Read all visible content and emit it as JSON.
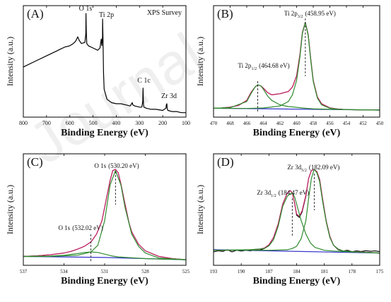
{
  "watermark": "Journal",
  "chart_data": [
    {
      "panel": "(A)",
      "type": "line",
      "title": "XPS Survey",
      "xlabel": "Binding Energy (eV)",
      "ylabel": "Intensity (a.u.)",
      "xlim": [
        800,
        100
      ],
      "x_reversed": true,
      "ylim": [
        0,
        100
      ],
      "yticks_shown": false,
      "xticks": [
        800,
        700,
        600,
        500,
        400,
        300,
        200,
        100
      ],
      "grid": false,
      "series": [
        {
          "color": "#000000",
          "x": [
            800,
            750,
            700,
            660,
            640,
            620,
            600,
            585,
            575,
            566,
            560,
            550,
            535,
            531,
            530.2,
            529,
            527,
            520,
            500,
            480,
            470,
            464.7,
            462,
            459,
            458.9,
            457,
            455,
            452,
            440,
            420,
            400,
            380,
            360,
            340,
            331,
            329,
            320,
            300,
            290,
            286,
            284.8,
            283,
            281,
            270,
            250,
            230,
            200,
            186,
            184.5,
            182.1,
            181,
            178,
            160,
            140,
            120,
            100
          ],
          "values": [
            45,
            50,
            55,
            59,
            61,
            63,
            64,
            66,
            68,
            72,
            69,
            66,
            67,
            75,
            93,
            78,
            66,
            64,
            62,
            60,
            62,
            70,
            64,
            72,
            88,
            70,
            40,
            25,
            16,
            13,
            12,
            12,
            11,
            10,
            13,
            11,
            10,
            9,
            9,
            14,
            26,
            12,
            9,
            8,
            7,
            7,
            6,
            8,
            11,
            12,
            8,
            6,
            5,
            5,
            4,
            4
          ]
        }
      ],
      "annotations": [
        {
          "text": "O 1s",
          "x": 530.2
        },
        {
          "text": "Ti 2p",
          "x": 459
        },
        {
          "text": "C 1c",
          "x": 284.8
        },
        {
          "text": "Zr 3d",
          "x": 182
        }
      ]
    },
    {
      "panel": "(B)",
      "type": "line",
      "title": "",
      "xlabel": "Binding Energy (eV)",
      "ylabel": "Intensity (a.u.)",
      "xlim": [
        470,
        450
      ],
      "x_reversed": true,
      "ylim": [
        0,
        100
      ],
      "yticks_shown": false,
      "xticks": [
        470,
        468,
        466,
        464,
        462,
        460,
        458,
        456,
        454,
        452,
        450
      ],
      "grid": false,
      "series": [
        {
          "role": "raw",
          "color": "#000000",
          "x": [
            470,
            469,
            468,
            467,
            466,
            465.5,
            465,
            464.68,
            464.3,
            464,
            463.5,
            463,
            462.5,
            462,
            461,
            460.5,
            460,
            459.6,
            459.3,
            458.95,
            458.6,
            458.3,
            458,
            457.5,
            457,
            456,
            455,
            454,
            452,
            450
          ],
          "values": [
            8,
            8.2,
            9,
            10.5,
            15,
            22,
            27,
            29,
            28,
            26,
            22,
            20,
            20.5,
            21,
            23,
            27,
            37,
            56,
            76,
            85,
            74,
            52,
            33,
            18,
            12,
            8.3,
            7.2,
            6.8,
            6.5,
            6.3
          ]
        },
        {
          "role": "background",
          "color": "#3333cc",
          "x": [
            470,
            450
          ],
          "values": [
            8,
            6.3
          ]
        },
        {
          "role": "fit",
          "color": "#cc2266",
          "x": [
            470,
            469,
            468,
            467,
            466,
            465.5,
            465,
            464.68,
            464.3,
            464,
            463.5,
            463,
            462.5,
            462,
            461,
            460.5,
            460,
            459.6,
            459.3,
            458.95,
            458.6,
            458.3,
            458,
            457.5,
            457,
            456,
            455,
            454,
            452,
            450
          ],
          "values": [
            8,
            8.2,
            9,
            10.5,
            15,
            22,
            27,
            29,
            28,
            26,
            22,
            20,
            20.5,
            21,
            23,
            27,
            37,
            56,
            76,
            85,
            74,
            52,
            33,
            18,
            12,
            8.3,
            7.2,
            6.8,
            6.5,
            6.3
          ]
        },
        {
          "role": "component",
          "color": "#2e8b2e",
          "x": [
            470,
            468,
            466,
            465.5,
            465,
            464.68,
            464.3,
            464,
            463.5,
            463,
            462,
            461,
            460,
            459,
            458,
            456,
            454,
            452,
            450
          ],
          "values": [
            8,
            8.5,
            14,
            21,
            27,
            29,
            28,
            25,
            19,
            15,
            11,
            9.5,
            8.8,
            8,
            7.5,
            7,
            6.8,
            6.5,
            6.3
          ]
        },
        {
          "role": "component",
          "color": "#2e8b2e",
          "x": [
            470,
            466,
            464,
            462,
            461,
            460.5,
            460,
            459.6,
            459.3,
            458.95,
            458.6,
            458.3,
            458,
            457.5,
            457,
            456,
            455,
            454,
            452,
            450
          ],
          "values": [
            8,
            7.8,
            8.2,
            10,
            14,
            20,
            33,
            54,
            75,
            85,
            73,
            51,
            32,
            17,
            11,
            8,
            7,
            6.8,
            6.5,
            6.3
          ]
        }
      ],
      "annotations": [
        {
          "text": "Ti 2p",
          "sub": "3/2",
          "value": "(458.95 eV)",
          "x": 458.95
        },
        {
          "text": "Ti 2p",
          "sub": "1/2",
          "value": "(464.68 eV)",
          "x": 464.68
        }
      ]
    },
    {
      "panel": "(C)",
      "type": "line",
      "title": "",
      "xlabel": "Binding Energy (eV)",
      "ylabel": "Intensity (a.u.)",
      "xlim": [
        537,
        525
      ],
      "x_reversed": true,
      "ylim": [
        0,
        100
      ],
      "yticks_shown": false,
      "xticks": [
        537,
        534,
        531,
        528,
        525
      ],
      "grid": false,
      "series": [
        {
          "role": "raw",
          "color": "#000000",
          "x": [
            537,
            536,
            535,
            534,
            533.5,
            533,
            532.5,
            532,
            531.6,
            531.2,
            530.9,
            530.6,
            530.4,
            530.2,
            530,
            529.8,
            529.5,
            529.2,
            529,
            528.5,
            528,
            527,
            526,
            525
          ],
          "values": [
            8,
            8.5,
            9.5,
            11,
            12.5,
            14.5,
            17,
            21,
            28,
            40,
            58,
            76,
            85,
            86,
            83,
            73,
            55,
            38,
            30,
            19,
            13,
            8,
            6,
            5
          ]
        },
        {
          "role": "background",
          "color": "#3333cc",
          "x": [
            537,
            531,
            525
          ],
          "values": [
            8,
            7,
            5
          ]
        },
        {
          "role": "fit",
          "color": "#cc2266",
          "x": [
            537,
            536,
            535,
            534,
            533.5,
            533,
            532.5,
            532,
            531.6,
            531.2,
            530.9,
            530.6,
            530.4,
            530.2,
            530,
            529.8,
            529.5,
            529.2,
            529,
            528.5,
            528,
            527,
            526,
            525
          ],
          "values": [
            8,
            8.5,
            9.5,
            11,
            12.5,
            14.5,
            17,
            21,
            28,
            40,
            58,
            76,
            85,
            86,
            83,
            73,
            55,
            38,
            30,
            19,
            13,
            8,
            6,
            5
          ]
        },
        {
          "role": "component",
          "color": "#2e8b2e",
          "x": [
            537,
            535,
            534,
            533,
            532.5,
            532.02,
            531.5,
            531,
            530.5,
            530,
            529,
            528,
            525
          ],
          "values": [
            8,
            8.3,
            9,
            10.5,
            11.5,
            12,
            11.5,
            10,
            8.5,
            7.5,
            6.8,
            6,
            5
          ]
        },
        {
          "role": "component",
          "color": "#2e8b2e",
          "x": [
            537,
            535,
            533,
            532,
            531.5,
            531,
            530.6,
            530.2,
            529.8,
            529.5,
            529,
            528.5,
            528,
            527,
            525
          ],
          "values": [
            7.8,
            8,
            9,
            12,
            18,
            40,
            72,
            85,
            72,
            52,
            28,
            17,
            11,
            6.5,
            5
          ]
        }
      ],
      "annotations": [
        {
          "text": "O 1s",
          "value": "(530.20 eV)",
          "x": 530.2
        },
        {
          "text": "O 1s",
          "value": "(532.02 eV)",
          "x": 532.02
        }
      ]
    },
    {
      "panel": "(D)",
      "type": "line",
      "title": "",
      "xlabel": "Binding Energy (eV)",
      "ylabel": "Intensity (a.u.)",
      "xlim": [
        193,
        175
      ],
      "x_reversed": true,
      "ylim": [
        0,
        100
      ],
      "yticks_shown": false,
      "xticks": [
        193,
        190,
        187,
        184,
        181,
        178,
        175
      ],
      "grid": false,
      "series": [
        {
          "role": "raw",
          "color": "#000000",
          "x": [
            193,
            192.5,
            192,
            191.5,
            191,
            190.5,
            190,
            189.5,
            189,
            188.5,
            188,
            187.5,
            187,
            186.5,
            186,
            185.5,
            185,
            184.7,
            184.47,
            184.2,
            184,
            183.7,
            183.4,
            183,
            182.7,
            182.4,
            182.09,
            181.8,
            181.5,
            181.2,
            180.8,
            180.4,
            180,
            179.5,
            179,
            178.5,
            178,
            177.5,
            177,
            176.5,
            176,
            175.5,
            175
          ],
          "values": [
            12,
            13,
            12.5,
            14,
            12,
            13.5,
            12.8,
            13.4,
            12.9,
            14,
            13.6,
            15,
            18,
            25,
            37,
            55,
            65,
            67,
            65,
            55,
            45,
            43,
            48,
            62,
            78,
            85,
            86,
            84,
            77,
            60,
            40,
            26,
            18,
            14,
            12.8,
            13.5,
            12.2,
            13,
            12.4,
            13.1,
            12.6,
            12.9,
            12.3
          ]
        },
        {
          "role": "background",
          "color": "#3333cc",
          "x": [
            193,
            175
          ],
          "values": [
            14,
            11
          ]
        },
        {
          "role": "fit",
          "color": "#cc2266",
          "x": [
            193,
            191,
            189,
            188,
            187.5,
            187,
            186.5,
            186,
            185.5,
            185,
            184.7,
            184.47,
            184.2,
            184,
            183.7,
            183.4,
            183,
            182.7,
            182.4,
            182.09,
            181.8,
            181.5,
            181.2,
            180.8,
            180.4,
            180,
            179.5,
            179,
            178,
            177,
            175
          ],
          "values": [
            13.5,
            13.5,
            14,
            14.5,
            15.5,
            18.5,
            25,
            37,
            55,
            65,
            67,
            65,
            55,
            46,
            44,
            49,
            63,
            78,
            85,
            86,
            84,
            77,
            60,
            40,
            26,
            18,
            14.5,
            13,
            12.3,
            12,
            11
          ]
        },
        {
          "role": "component",
          "color": "#2e8b2e",
          "x": [
            193,
            189,
            187.5,
            187,
            186.5,
            186,
            185.5,
            185,
            184.7,
            184.47,
            184.2,
            184,
            183.5,
            183,
            182.5,
            182,
            181,
            180,
            178,
            175
          ],
          "values": [
            13.5,
            14,
            15,
            17.5,
            23,
            35,
            53,
            62,
            64,
            65,
            61,
            55,
            40,
            28,
            20,
            16,
            13.5,
            12.8,
            12,
            11
          ]
        },
        {
          "role": "component",
          "color": "#2e8b2e",
          "x": [
            193,
            187,
            185,
            184.5,
            184,
            183.5,
            183,
            182.7,
            182.4,
            182.09,
            181.8,
            181.5,
            181.2,
            180.8,
            180.4,
            180,
            179.5,
            179,
            178,
            175
          ],
          "values": [
            13.5,
            13.5,
            14,
            15,
            17,
            24,
            40,
            60,
            78,
            86,
            83,
            75,
            58,
            39,
            25,
            18,
            14.5,
            13,
            12.3,
            11
          ]
        }
      ],
      "annotations": [
        {
          "text": "Zr 3d",
          "sub": "5/2",
          "value": "(182.09 eV)",
          "x": 182.09
        },
        {
          "text": "Zr 3d",
          "sub": "1/2",
          "value": "(184.47 eV)",
          "x": 184.47
        }
      ]
    }
  ]
}
